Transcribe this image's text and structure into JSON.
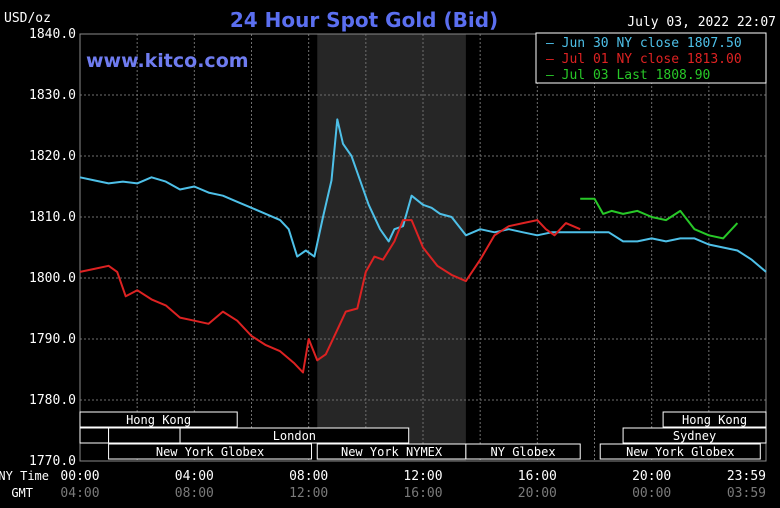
{
  "chart_data": {
    "type": "line",
    "title": "24 Hour Spot Gold (Bid)",
    "timestamp": "July 03, 2022 22:07",
    "watermark": "www.kitco.com",
    "ylabel": "USD/oz",
    "ylim": [
      1770,
      1840
    ],
    "yticks": [
      "1840.0",
      "1830.0",
      "1820.0",
      "1810.0",
      "1800.0",
      "1790.0",
      "1780.0",
      "1770.0"
    ],
    "x_row_labels": [
      "NY Time",
      "GMT"
    ],
    "xticks_ny": [
      "00:00",
      "04:00",
      "08:00",
      "12:00",
      "16:00",
      "20:00",
      "23:59"
    ],
    "xticks_gmt": [
      "04:00",
      "08:00",
      "12:00",
      "16:00",
      "20:00",
      "00:00",
      "03:59"
    ],
    "xlim_hours": [
      0,
      24
    ],
    "highlight_span_hours": [
      8.3,
      13.5
    ],
    "colors": {
      "background": "#000000",
      "grid": "#6f6f6f",
      "highlight": "#262626",
      "series_jun30": "#4ec0e8",
      "series_jul01": "#dd2222",
      "series_jul03": "#28c828",
      "title": "#5b6ff0",
      "watermark": "#6f7cf0",
      "legend_border": "#ffffff"
    },
    "legend": [
      "— Jun 30 NY close 1807.50",
      "— Jul 01 NY close 1813.00",
      "— Jul 03 Last 1808.90"
    ],
    "sessions": [
      {
        "label": "Hong Kong",
        "start": 0,
        "end": 5.5,
        "row": 0
      },
      {
        "label": "Hong Kong",
        "start": 20.4,
        "end": 24,
        "row": 0
      },
      {
        "label": "",
        "start": 0,
        "end": 1,
        "row": 1
      },
      {
        "label": "",
        "start": 1,
        "end": 3.5,
        "row": 1
      },
      {
        "label": "",
        "start": 3.5,
        "end": 5.5,
        "row": 1
      },
      {
        "label": "London",
        "start": 3.5,
        "end": 11.5,
        "row": 1
      },
      {
        "label": "Sydney",
        "start": 19,
        "end": 24,
        "row": 1
      },
      {
        "label": "New York Globex",
        "start": 1,
        "end": 8.1,
        "row": 2
      },
      {
        "label": "New York NYMEX",
        "start": 8.3,
        "end": 13.5,
        "row": 2
      },
      {
        "label": "NY Globex",
        "start": 13.5,
        "end": 17.5,
        "row": 2
      },
      {
        "label": "New York Globex",
        "start": 18.2,
        "end": 23.8,
        "row": 2
      }
    ],
    "series": [
      {
        "name": "Jun 30 NY close 1807.50",
        "color": "#4ec0e8",
        "x": [
          0,
          0.5,
          1,
          1.5,
          2,
          2.5,
          3,
          3.5,
          4,
          4.5,
          5,
          5.5,
          6,
          6.5,
          7,
          7.3,
          7.6,
          7.9,
          8.2,
          8.5,
          8.8,
          9.0,
          9.2,
          9.5,
          9.8,
          10.1,
          10.5,
          10.8,
          11.0,
          11.3,
          11.6,
          12.0,
          12.3,
          12.6,
          13.0,
          13.5,
          14,
          14.5,
          15,
          15.5,
          16,
          16.5,
          17,
          17.5,
          18,
          18.5,
          19,
          19.5,
          20,
          20.5,
          21,
          21.5,
          22,
          22.5,
          23,
          23.5,
          24
        ],
        "values": [
          1816.5,
          1816.0,
          1815.5,
          1815.8,
          1815.5,
          1816.5,
          1815.8,
          1814.5,
          1815.0,
          1814.0,
          1813.5,
          1812.5,
          1811.5,
          1810.5,
          1809.5,
          1808.0,
          1803.5,
          1804.5,
          1803.5,
          1810.0,
          1816.0,
          1826.0,
          1822.0,
          1820.0,
          1816.0,
          1812.0,
          1808.0,
          1806.0,
          1808.0,
          1808.5,
          1813.5,
          1812.0,
          1811.5,
          1810.5,
          1810.0,
          1807.0,
          1808.0,
          1807.5,
          1808.0,
          1807.5,
          1807.0,
          1807.5,
          1807.5,
          1807.5,
          1807.5,
          1807.5,
          1806.0,
          1806.0,
          1806.5,
          1806.0,
          1806.5,
          1806.5,
          1805.5,
          1805.0,
          1804.5,
          1803.0,
          1801.0
        ]
      },
      {
        "name": "Jul 01 NY close 1813.00",
        "color": "#dd2222",
        "x": [
          0,
          0.5,
          1,
          1.3,
          1.6,
          2.0,
          2.5,
          3.0,
          3.5,
          4.0,
          4.5,
          5.0,
          5.5,
          6.0,
          6.5,
          7.0,
          7.5,
          7.8,
          8.0,
          8.3,
          8.6,
          9.0,
          9.3,
          9.7,
          10.0,
          10.3,
          10.6,
          11.0,
          11.3,
          11.6,
          12.0,
          12.5,
          13.0,
          13.5,
          14.0,
          14.5,
          15.0,
          15.5,
          16.0,
          16.3,
          16.6,
          17.0,
          17.5
        ],
        "values": [
          1801.0,
          1801.5,
          1802.0,
          1801.0,
          1797.0,
          1798.0,
          1796.5,
          1795.5,
          1793.5,
          1793.0,
          1792.5,
          1794.5,
          1793.0,
          1790.5,
          1789.0,
          1788.0,
          1786.0,
          1784.5,
          1790.0,
          1786.5,
          1787.5,
          1791.5,
          1794.5,
          1795.0,
          1801.0,
          1803.5,
          1803.0,
          1806.0,
          1809.5,
          1809.5,
          1805.0,
          1802.0,
          1800.5,
          1799.5,
          1803.0,
          1807.0,
          1808.5,
          1809.0,
          1809.5,
          1808.0,
          1807.0,
          1809.0,
          1808.0
        ]
      },
      {
        "name": "Jul 03 Last 1808.90",
        "color": "#28c828",
        "x": [
          17.5,
          18.0,
          18.3,
          18.6,
          19.0,
          19.5,
          20.0,
          20.5,
          21.0,
          21.5,
          22.0,
          22.5,
          23.0
        ],
        "values": [
          1813.0,
          1813.0,
          1810.5,
          1811.0,
          1810.5,
          1811.0,
          1810.0,
          1809.5,
          1811.0,
          1808.0,
          1807.0,
          1806.5,
          1809.0
        ]
      }
    ]
  }
}
